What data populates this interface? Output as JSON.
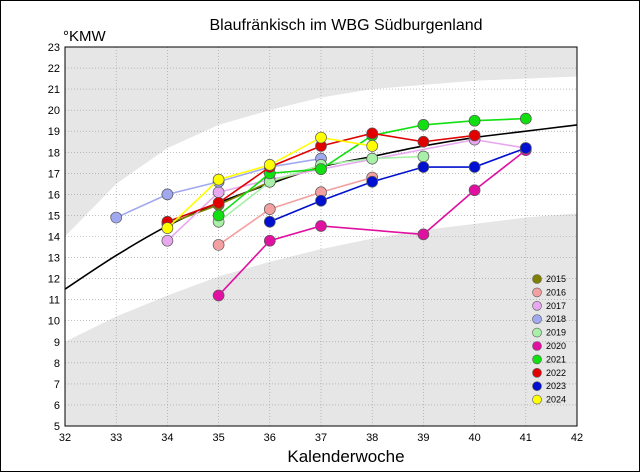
{
  "chart_data": {
    "type": "line",
    "title": "Blaufränkisch im WBG Südburgenland",
    "ylabel": "°KMW",
    "xlabel": "Kalenderwoche",
    "xlim": [
      32,
      42
    ],
    "ylim": [
      5,
      23
    ],
    "x_ticks": [
      "32",
      "33",
      "34",
      "35",
      "36",
      "37",
      "38",
      "39",
      "40",
      "41",
      "42"
    ],
    "y_ticks": [
      "5",
      "6",
      "7",
      "8",
      "9",
      "10",
      "11",
      "12",
      "13",
      "14",
      "15",
      "16",
      "17",
      "18",
      "19",
      "20",
      "21",
      "22",
      "23"
    ],
    "grid": true,
    "legend_position": "bottom-right",
    "trend": {
      "color": "#000000",
      "x": [
        32,
        33,
        34,
        35,
        36,
        37,
        38,
        39,
        40,
        41,
        42
      ],
      "y": [
        11.5,
        13.1,
        14.5,
        15.6,
        16.5,
        17.3,
        17.8,
        18.3,
        18.7,
        19.0,
        19.3
      ]
    },
    "band": {
      "x": [
        32,
        33,
        34,
        35,
        36,
        37,
        38,
        39,
        40,
        41,
        42
      ],
      "upper": [
        14.0,
        16.5,
        18.2,
        19.3,
        20.0,
        20.6,
        21.0,
        21.2,
        21.4,
        21.5,
        21.6
      ],
      "lower": [
        9.0,
        10.2,
        11.2,
        12.1,
        12.8,
        13.4,
        13.9,
        14.3,
        14.6,
        14.9,
        15.1
      ]
    },
    "series": [
      {
        "name": "2015",
        "color": "#808000",
        "points": [
          [
            34,
            14.6
          ],
          [
            35,
            15.5
          ],
          [
            36,
            16.6
          ],
          [
            37,
            17.3
          ]
        ]
      },
      {
        "name": "2016",
        "color": "#f4a0a0",
        "points": [
          [
            35,
            13.6
          ],
          [
            36,
            15.3
          ],
          [
            37,
            16.1
          ],
          [
            38,
            16.8
          ]
        ]
      },
      {
        "name": "2017",
        "color": "#e8a8f0",
        "points": [
          [
            34,
            13.8
          ],
          [
            35,
            16.1
          ],
          [
            36,
            16.7
          ],
          [
            37,
            17.2
          ],
          [
            40,
            18.6
          ],
          [
            41,
            18.2
          ]
        ]
      },
      {
        "name": "2018",
        "color": "#a0a8f0",
        "points": [
          [
            33,
            14.9
          ],
          [
            34,
            16.0
          ],
          [
            35,
            16.6
          ],
          [
            36,
            17.3
          ],
          [
            37,
            17.7
          ]
        ]
      },
      {
        "name": "2019",
        "color": "#a8f0a8",
        "points": [
          [
            35,
            14.7
          ],
          [
            36,
            16.6
          ],
          [
            37,
            17.4
          ],
          [
            38,
            17.7
          ],
          [
            39,
            17.8
          ]
        ]
      },
      {
        "name": "2020",
        "color": "#e010a0",
        "points": [
          [
            35,
            11.2
          ],
          [
            36,
            13.8
          ],
          [
            37,
            14.5
          ],
          [
            39,
            14.1
          ],
          [
            40,
            16.2
          ],
          [
            41,
            18.1
          ]
        ]
      },
      {
        "name": "2021",
        "color": "#10e010",
        "points": [
          [
            35,
            15.0
          ],
          [
            36,
            17.0
          ],
          [
            37,
            17.2
          ],
          [
            38,
            18.8
          ],
          [
            39,
            19.3
          ],
          [
            40,
            19.5
          ],
          [
            41,
            19.6
          ]
        ]
      },
      {
        "name": "2022",
        "color": "#e00000",
        "points": [
          [
            34,
            14.7
          ],
          [
            35,
            15.6
          ],
          [
            36,
            17.3
          ],
          [
            37,
            18.3
          ],
          [
            38,
            18.9
          ],
          [
            39,
            18.5
          ],
          [
            40,
            18.8
          ]
        ]
      },
      {
        "name": "2023",
        "color": "#0010d0",
        "points": [
          [
            36,
            14.7
          ],
          [
            37,
            15.7
          ],
          [
            38,
            16.6
          ],
          [
            39,
            17.3
          ],
          [
            40,
            17.3
          ],
          [
            41,
            18.2
          ]
        ]
      },
      {
        "name": "2024",
        "color": "#ffff00",
        "points": [
          [
            34,
            14.4
          ],
          [
            35,
            16.7
          ],
          [
            36,
            17.4
          ],
          [
            37,
            18.7
          ],
          [
            38,
            18.3
          ]
        ]
      }
    ]
  }
}
